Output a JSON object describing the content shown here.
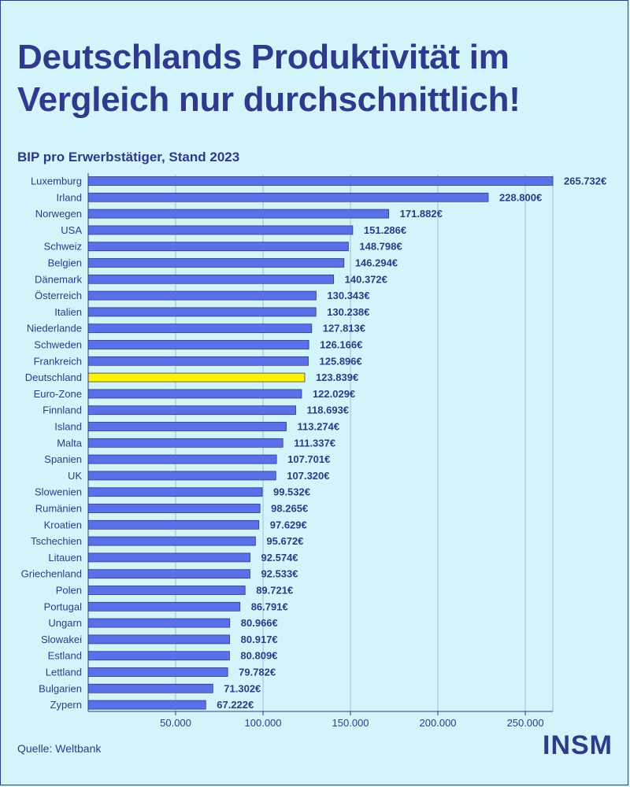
{
  "title_line1": "Deutschlands Produktivität im",
  "title_line2": "Vergleich nur durchschnittlich!",
  "source": "Quelle: Weltbank",
  "logo": "INSM",
  "colors": {
    "background": "#d3f4fb",
    "bar": "#5a70e8",
    "highlight_bar": "#fff203",
    "text": "#2e3a87"
  },
  "chart_data": {
    "type": "bar",
    "orientation": "horizontal",
    "title": "BIP pro Erwerbstätiger, Stand 2023",
    "xlabel": "",
    "ylabel": "",
    "xlim": [
      0,
      265732
    ],
    "grid": true,
    "highlight": "Deutschland",
    "categories": [
      "Luxemburg",
      "Irland",
      "Norwegen",
      "USA",
      "Schweiz",
      "Belgien",
      "Dänemark",
      "Österreich",
      "Italien",
      "Niederlande",
      "Schweden",
      "Frankreich",
      "Deutschland",
      "Euro-Zone",
      "Finnland",
      "Island",
      "Malta",
      "Spanien",
      "UK",
      "Slowenien",
      "Rumänien",
      "Kroatien",
      "Tschechien",
      "Litauen",
      "Griechenland",
      "Polen",
      "Portugal",
      "Ungarn",
      "Slowakei",
      "Estland",
      "Lettland",
      "Bulgarien",
      "Zypern"
    ],
    "values": [
      265732,
      228800,
      171882,
      151286,
      148798,
      146294,
      140372,
      130343,
      130238,
      127813,
      126166,
      125896,
      123839,
      122029,
      118693,
      113274,
      111337,
      107701,
      107320,
      99532,
      98265,
      97629,
      95672,
      92574,
      92533,
      89721,
      86791,
      80966,
      80917,
      80809,
      79782,
      71302,
      67222
    ],
    "value_labels": [
      "265.732€",
      "228.800€",
      "171.882€",
      "151.286€",
      "148.798€",
      "146.294€",
      "140.372€",
      "130.343€",
      "130.238€",
      "127.813€",
      "126.166€",
      "125.896€",
      "123.839€",
      "122.029€",
      "118.693€",
      "113.274€",
      "111.337€",
      "107.701€",
      "107.320€",
      "99.532€",
      "98.265€",
      "97.629€",
      "95.672€",
      "92.574€",
      "92.533€",
      "89.721€",
      "86.791€",
      "80.966€",
      "80.917€",
      "80.809€",
      "79.782€",
      "71.302€",
      "67.222€"
    ],
    "ticks": [
      50000,
      100000,
      150000,
      200000,
      250000
    ],
    "tick_labels": [
      "50.000",
      "100.000",
      "150.000",
      "200.000",
      "250.000"
    ]
  }
}
